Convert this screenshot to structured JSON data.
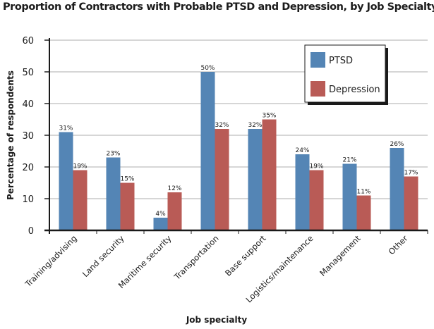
{
  "chart_data": {
    "type": "bar",
    "title": "Proportion of Contractors with Probable PTSD and Depression, by Job Specialty",
    "xlabel": "Job specialty",
    "ylabel": "Percentage of respondents",
    "ylim": [
      0,
      60
    ],
    "yticks": [
      0,
      10,
      20,
      30,
      40,
      50,
      60
    ],
    "grid": true,
    "legend_position": "top-right",
    "categories": [
      "Training/advising",
      "Land security",
      "Maritime security",
      "Transportation",
      "Base support",
      "Logistics/maintenance",
      "Management",
      "Other"
    ],
    "series": [
      {
        "name": "PTSD",
        "color": "#5485b5",
        "values": [
          31,
          23,
          4,
          50,
          32,
          24,
          21,
          26
        ],
        "labels": [
          "31%",
          "23%",
          "4%",
          "50%",
          "32%",
          "24%",
          "21%",
          "26%"
        ]
      },
      {
        "name": "Depression",
        "color": "#b95b56",
        "values": [
          19,
          15,
          12,
          32,
          35,
          19,
          11,
          17
        ],
        "labels": [
          "19%",
          "15%",
          "12%",
          "32%",
          "35%",
          "19%",
          "11%",
          "17%"
        ]
      }
    ]
  }
}
